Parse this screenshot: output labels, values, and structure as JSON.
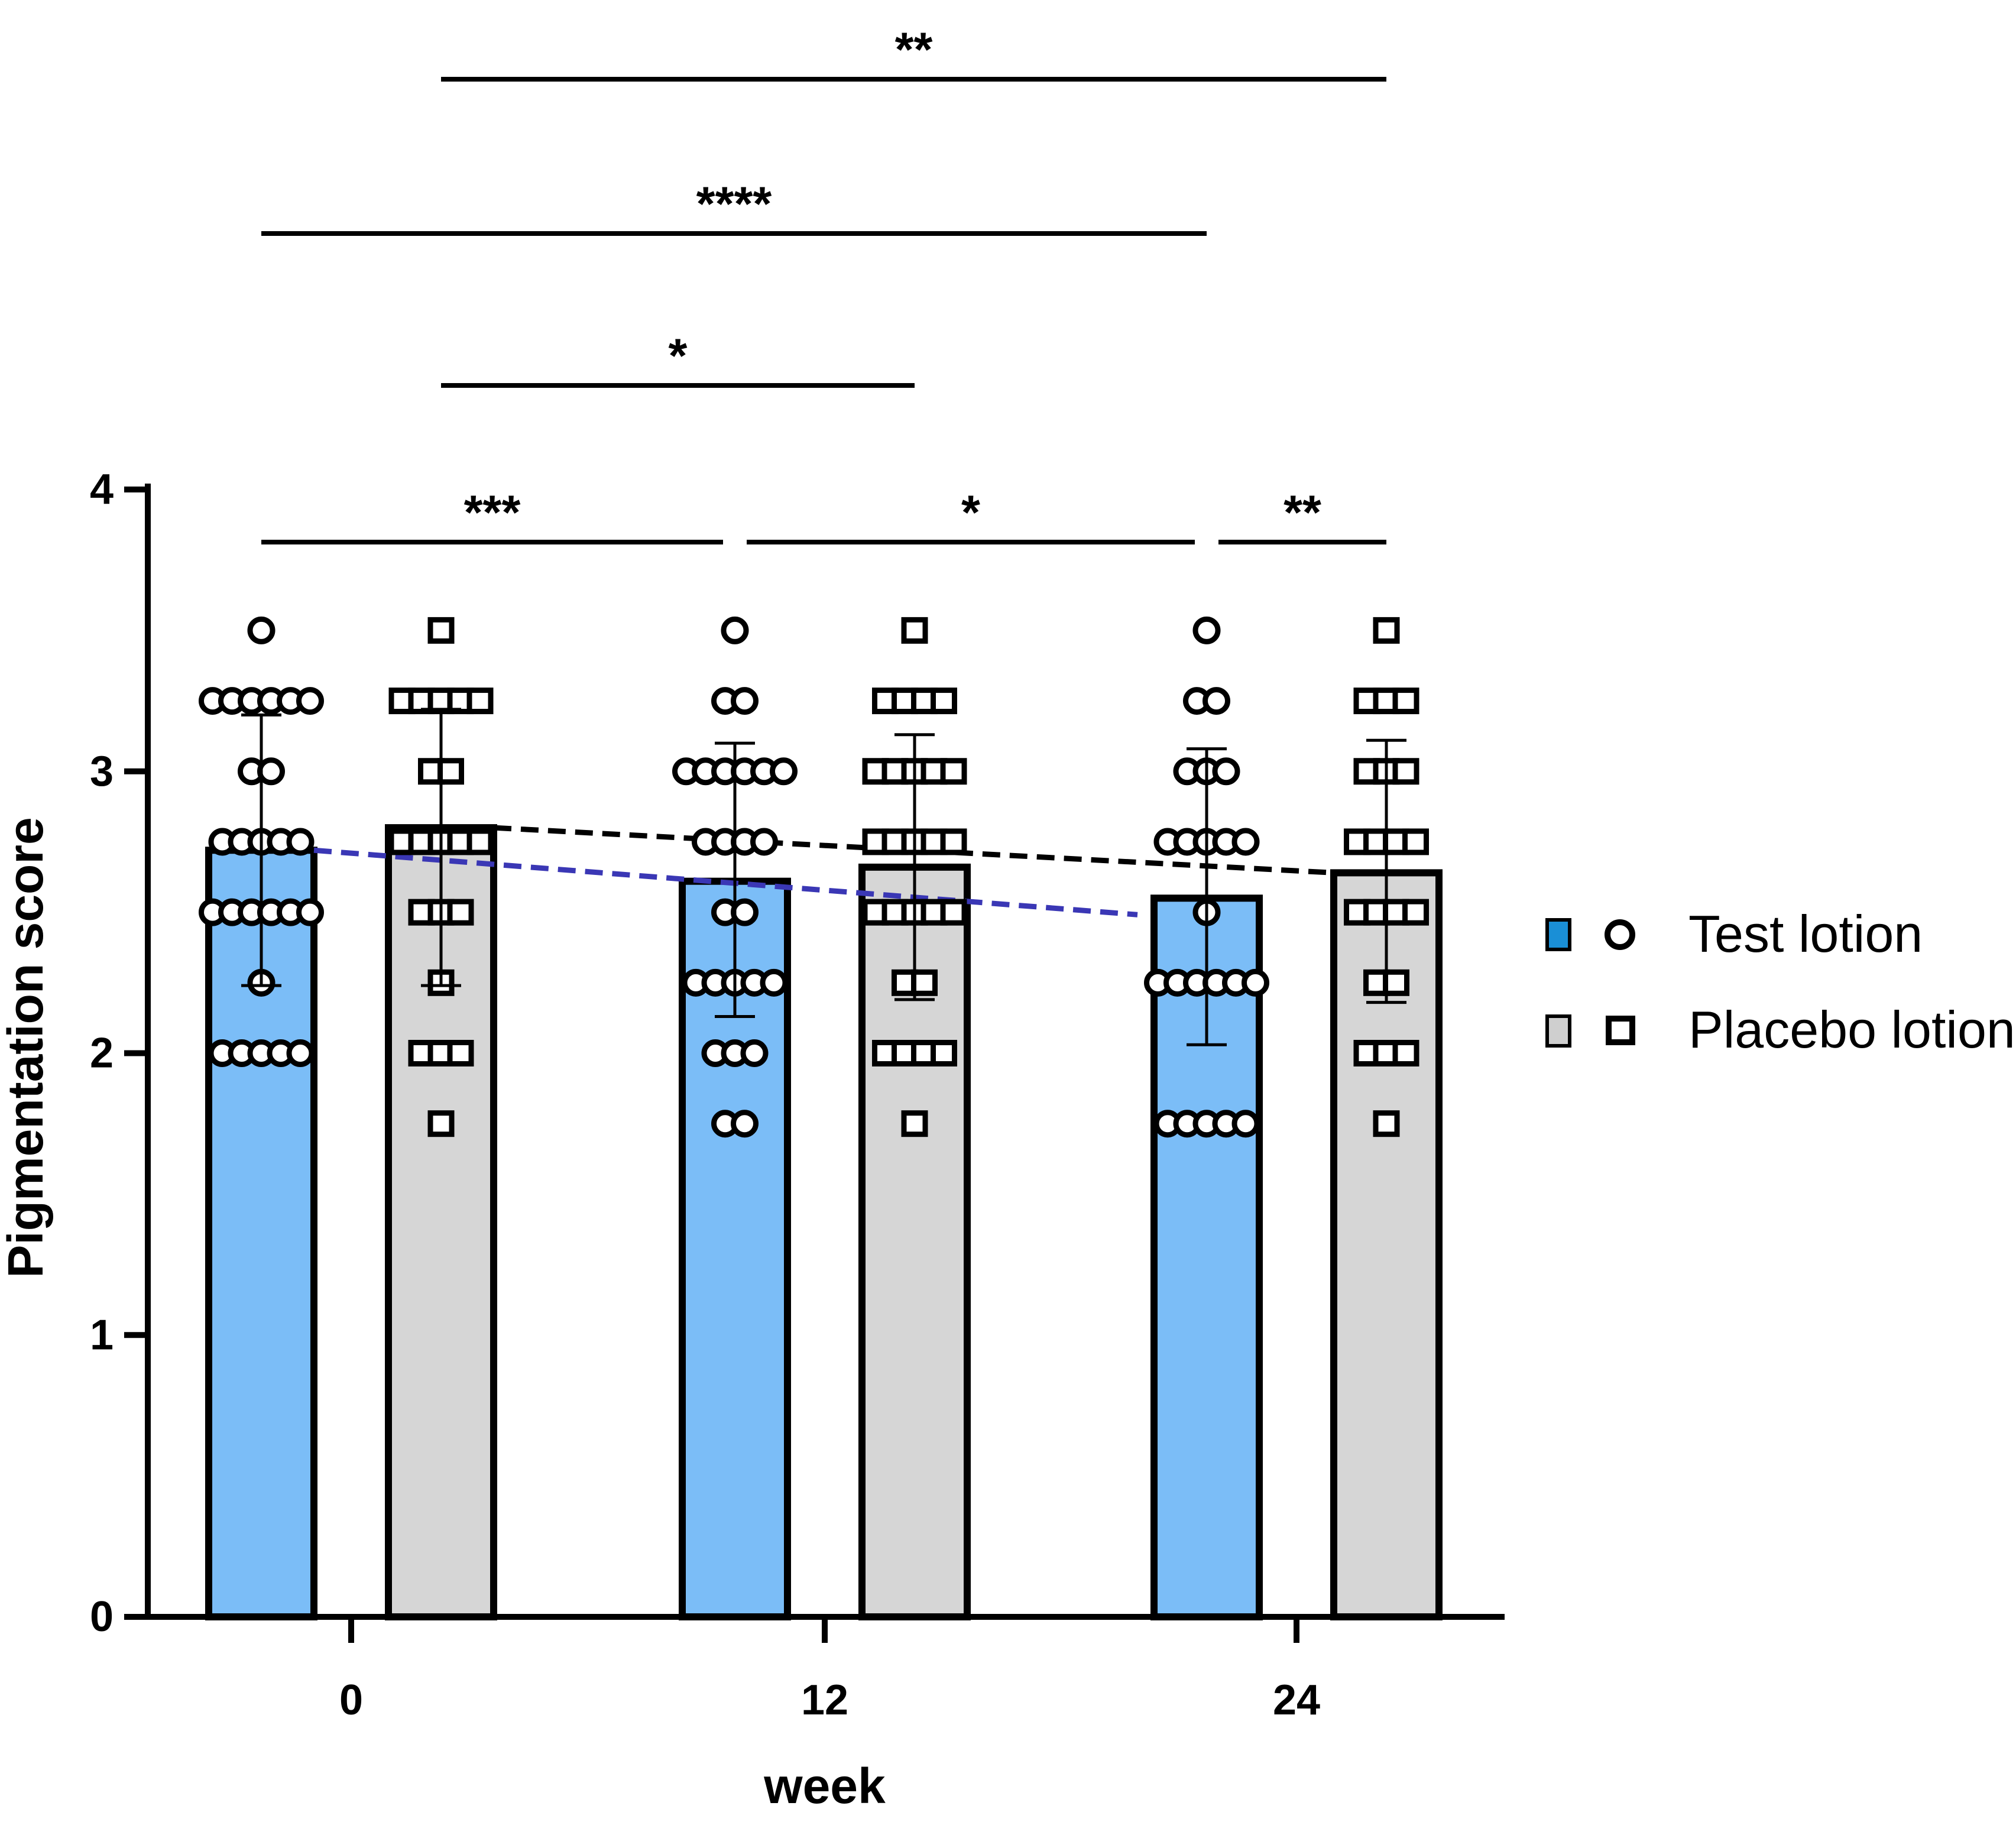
{
  "colors": {
    "test": "#7bbdf7",
    "placebo": "#d6d6d6",
    "test_legend": "#1a8fd6",
    "placebo_legend": "#cfcfcf",
    "outline": "#000000",
    "test_trend": "#3a37b5",
    "placebo_trend": "#000000"
  },
  "chart_data": {
    "type": "bar",
    "xlabel": "week",
    "ylabel": "Pigmentation score",
    "categories": [
      "0",
      "12",
      "24"
    ],
    "ylim": [
      0,
      4
    ],
    "yticks": [
      "0",
      "1",
      "2",
      "3",
      "4"
    ],
    "grid": false,
    "legend_position": "right",
    "series": [
      {
        "name": "Test lotion",
        "marker": "circle",
        "values": [
          2.72,
          2.61,
          2.55
        ],
        "err_low": [
          2.24,
          2.13,
          2.03
        ],
        "err_high": [
          3.2,
          3.1,
          3.08
        ],
        "points": [
          [
            3.5,
            3.25,
            3.25,
            3.25,
            3.25,
            3.25,
            3.25,
            3.0,
            3.0,
            2.75,
            2.75,
            2.75,
            2.75,
            2.75,
            2.5,
            2.5,
            2.5,
            2.5,
            2.5,
            2.5,
            2.25,
            2.0,
            2.0,
            2.0,
            2.0,
            2.0
          ],
          [
            3.5,
            3.25,
            3.25,
            3.0,
            3.0,
            3.0,
            3.0,
            3.0,
            3.0,
            2.75,
            2.75,
            2.75,
            2.75,
            2.5,
            2.5,
            2.25,
            2.25,
            2.25,
            2.25,
            2.25,
            2.0,
            2.0,
            2.0,
            1.75,
            1.75
          ],
          [
            3.5,
            3.25,
            3.25,
            3.0,
            3.0,
            3.0,
            2.75,
            2.75,
            2.75,
            2.75,
            2.75,
            2.5,
            2.25,
            2.25,
            2.25,
            2.25,
            2.25,
            2.25,
            1.75,
            1.75,
            1.75,
            1.75,
            1.75
          ]
        ]
      },
      {
        "name": "Placebo lotion",
        "marker": "square",
        "values": [
          2.8,
          2.66,
          2.64
        ],
        "err_low": [
          2.24,
          2.19,
          2.18
        ],
        "err_high": [
          3.22,
          3.13,
          3.11
        ],
        "points": [
          [
            3.5,
            3.25,
            3.25,
            3.25,
            3.25,
            3.25,
            3.0,
            3.0,
            2.75,
            2.75,
            2.75,
            2.75,
            2.75,
            2.5,
            2.5,
            2.5,
            2.25,
            2.0,
            2.0,
            2.0,
            1.75
          ],
          [
            3.5,
            3.25,
            3.25,
            3.25,
            3.25,
            3.0,
            3.0,
            3.0,
            3.0,
            3.0,
            2.75,
            2.75,
            2.75,
            2.75,
            2.75,
            2.5,
            2.5,
            2.5,
            2.5,
            2.5,
            2.25,
            2.25,
            2.0,
            2.0,
            2.0,
            2.0,
            1.75
          ],
          [
            3.5,
            3.25,
            3.25,
            3.25,
            3.0,
            3.0,
            3.0,
            2.75,
            2.75,
            2.75,
            2.75,
            2.5,
            2.5,
            2.5,
            2.5,
            2.25,
            2.25,
            2.0,
            2.0,
            2.0,
            1.75
          ]
        ]
      }
    ],
    "trend_lines": [
      {
        "series": "Test lotion",
        "style": "dashed",
        "from_bar": "0-test",
        "to_bar": "24-test"
      },
      {
        "series": "Placebo lotion",
        "style": "dashed",
        "from_bar": "0-placebo",
        "to_bar": "24-placebo"
      }
    ],
    "significance": [
      {
        "from_bar": "0-placebo",
        "to_bar": "24-placebo",
        "label": "**"
      },
      {
        "from_bar": "0-test",
        "to_bar": "24-test",
        "label": "****"
      },
      {
        "from_bar": "0-placebo",
        "to_bar": "12-placebo",
        "label": "*"
      },
      {
        "from_bar": "0-test",
        "to_bar": "12-test",
        "label": "***"
      },
      {
        "from_bar": "12-test",
        "to_bar": "24-test",
        "label": "*"
      },
      {
        "from_bar": "24-test",
        "to_bar": "24-placebo",
        "label": "**"
      }
    ]
  }
}
